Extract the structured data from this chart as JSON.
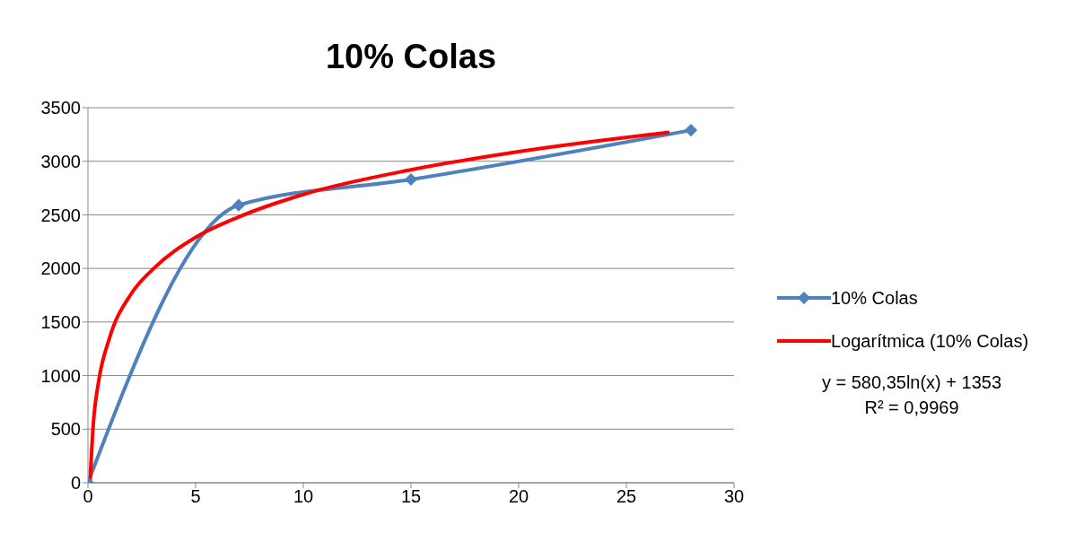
{
  "chart_data": {
    "type": "line",
    "title": "10% Colas",
    "series": [
      {
        "name": "10% Colas",
        "color": "#4f81bd",
        "x": [
          0,
          7,
          15,
          28
        ],
        "values": [
          0,
          2590,
          2830,
          3290
        ],
        "marker": "diamond"
      },
      {
        "name": "Logarítmica (10% Colas)",
        "type": "line",
        "color": "#ff0000",
        "x": [
          0.1,
          0.25,
          0.5,
          1,
          2,
          3,
          5,
          7,
          10,
          15,
          20,
          27
        ],
        "values": [
          20,
          550,
          950,
          1350,
          1760,
          1990,
          2290,
          2480,
          2690,
          2920,
          3090,
          3270
        ],
        "marker": "none"
      }
    ],
    "xlim": [
      0,
      30
    ],
    "xticks": [
      0,
      5,
      10,
      15,
      20,
      25,
      30
    ],
    "ylim": [
      0,
      3500
    ],
    "yticks": [
      0,
      500,
      1000,
      1500,
      2000,
      2500,
      3000,
      3500
    ],
    "grid": "y",
    "legend": "right",
    "annotations": [
      "y = 580,35ln(x) + 1353",
      "R² = 0,9969"
    ]
  }
}
